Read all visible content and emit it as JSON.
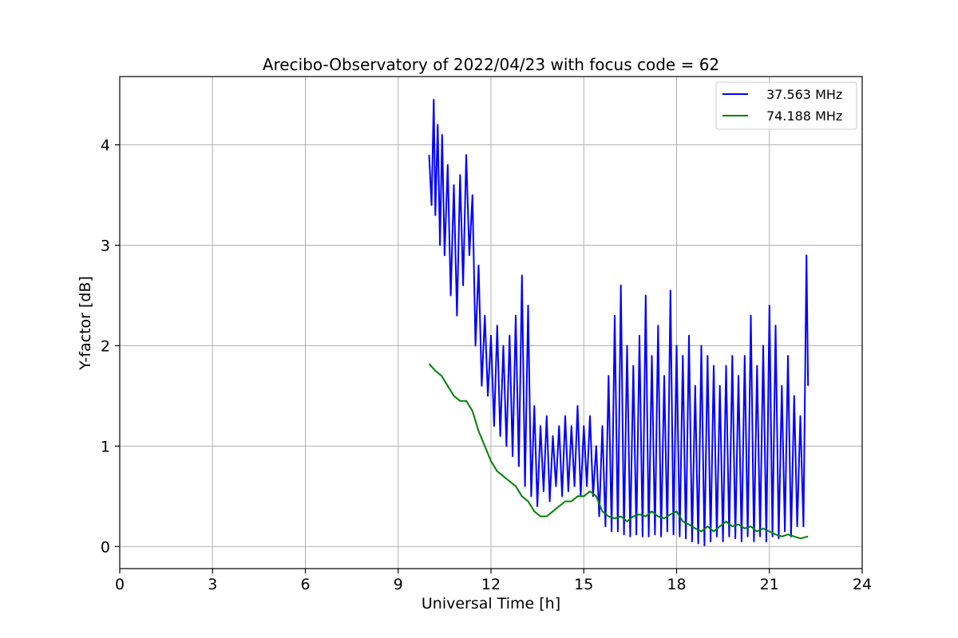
{
  "chart_data": {
    "type": "line",
    "title": "Arecibo-Observatory of 2022/04/23 with focus code = 62",
    "xlabel": "Universal Time [h]",
    "ylabel": "Y-factor [dB]",
    "xlim": [
      0,
      24
    ],
    "ylim": [
      -0.22,
      4.68
    ],
    "xticks": [
      0,
      3,
      6,
      9,
      12,
      15,
      18,
      21,
      24
    ],
    "yticks": [
      0,
      1,
      2,
      3,
      4
    ],
    "grid": true,
    "legend_position": "top-right",
    "series": [
      {
        "name": "37.563 MHz",
        "color": "#0000ff",
        "x": [
          10.0,
          10.08,
          10.15,
          10.2,
          10.28,
          10.35,
          10.42,
          10.5,
          10.6,
          10.7,
          10.8,
          10.9,
          11.0,
          11.1,
          11.2,
          11.3,
          11.4,
          11.5,
          11.6,
          11.7,
          11.8,
          11.9,
          12.0,
          12.1,
          12.2,
          12.3,
          12.4,
          12.5,
          12.6,
          12.7,
          12.8,
          12.9,
          13.0,
          13.1,
          13.2,
          13.3,
          13.4,
          13.5,
          13.6,
          13.7,
          13.8,
          13.9,
          14.0,
          14.1,
          14.2,
          14.3,
          14.4,
          14.5,
          14.6,
          14.7,
          14.8,
          14.9,
          15.0,
          15.1,
          15.2,
          15.3,
          15.4,
          15.5,
          15.6,
          15.7,
          15.8,
          15.9,
          16.0,
          16.1,
          16.2,
          16.3,
          16.4,
          16.5,
          16.6,
          16.7,
          16.8,
          16.9,
          17.0,
          17.1,
          17.2,
          17.3,
          17.4,
          17.5,
          17.6,
          17.7,
          17.8,
          17.9,
          18.0,
          18.1,
          18.2,
          18.3,
          18.4,
          18.5,
          18.6,
          18.7,
          18.8,
          18.9,
          19.0,
          19.1,
          19.2,
          19.3,
          19.4,
          19.5,
          19.6,
          19.7,
          19.8,
          19.9,
          20.0,
          20.1,
          20.2,
          20.3,
          20.4,
          20.5,
          20.6,
          20.7,
          20.8,
          20.9,
          21.0,
          21.1,
          21.2,
          21.3,
          21.4,
          21.5,
          21.6,
          21.7,
          21.8,
          21.9,
          22.0,
          22.1,
          22.2,
          22.25
        ],
        "y": [
          3.9,
          3.4,
          4.45,
          3.3,
          4.2,
          3.0,
          4.1,
          2.9,
          3.8,
          2.5,
          3.6,
          2.3,
          3.7,
          2.6,
          3.9,
          2.9,
          3.5,
          2.0,
          2.8,
          1.6,
          2.3,
          1.5,
          2.1,
          1.2,
          2.2,
          1.1,
          2.0,
          1.0,
          2.1,
          0.9,
          2.3,
          0.8,
          2.7,
          0.6,
          2.4,
          0.5,
          1.4,
          0.4,
          1.2,
          0.55,
          1.3,
          0.45,
          1.1,
          0.6,
          1.2,
          0.5,
          1.3,
          0.55,
          1.2,
          0.6,
          1.4,
          0.5,
          1.2,
          0.6,
          1.3,
          0.5,
          1.0,
          0.3,
          1.2,
          0.2,
          1.7,
          0.15,
          2.3,
          0.15,
          2.6,
          0.12,
          2.0,
          0.1,
          1.8,
          0.12,
          2.1,
          0.1,
          2.5,
          0.1,
          1.9,
          0.12,
          2.2,
          0.1,
          1.7,
          0.15,
          2.55,
          0.12,
          2.0,
          0.1,
          1.9,
          0.08,
          2.1,
          0.05,
          1.6,
          0.03,
          2.0,
          0.01,
          1.9,
          0.05,
          1.8,
          0.1,
          1.6,
          0.05,
          1.8,
          0.1,
          1.9,
          0.08,
          1.7,
          0.05,
          1.9,
          0.1,
          2.3,
          0.05,
          1.8,
          0.1,
          2.0,
          0.05,
          2.4,
          0.1,
          2.2,
          0.08,
          1.6,
          0.15,
          1.9,
          0.1,
          1.5,
          0.2,
          1.3,
          0.2,
          2.9,
          1.6
        ]
      },
      {
        "name": "74.188 MHz",
        "color": "#008000",
        "x": [
          10.0,
          10.2,
          10.4,
          10.6,
          10.8,
          11.0,
          11.2,
          11.4,
          11.6,
          11.8,
          12.0,
          12.2,
          12.4,
          12.6,
          12.8,
          13.0,
          13.2,
          13.4,
          13.6,
          13.8,
          14.0,
          14.2,
          14.4,
          14.6,
          14.8,
          15.0,
          15.2,
          15.4,
          15.6,
          15.8,
          16.0,
          16.2,
          16.4,
          16.6,
          16.8,
          17.0,
          17.2,
          17.4,
          17.6,
          17.8,
          18.0,
          18.2,
          18.4,
          18.6,
          18.8,
          19.0,
          19.2,
          19.4,
          19.6,
          19.8,
          20.0,
          20.2,
          20.4,
          20.6,
          20.8,
          21.0,
          21.2,
          21.4,
          21.6,
          21.8,
          22.0,
          22.25
        ],
        "y": [
          1.82,
          1.75,
          1.7,
          1.6,
          1.5,
          1.45,
          1.45,
          1.35,
          1.15,
          1.0,
          0.85,
          0.75,
          0.7,
          0.65,
          0.6,
          0.5,
          0.45,
          0.35,
          0.3,
          0.3,
          0.35,
          0.4,
          0.45,
          0.45,
          0.5,
          0.5,
          0.55,
          0.5,
          0.35,
          0.3,
          0.28,
          0.3,
          0.25,
          0.3,
          0.32,
          0.3,
          0.35,
          0.3,
          0.28,
          0.32,
          0.35,
          0.25,
          0.22,
          0.18,
          0.15,
          0.2,
          0.15,
          0.2,
          0.25,
          0.2,
          0.22,
          0.18,
          0.2,
          0.15,
          0.18,
          0.15,
          0.12,
          0.1,
          0.12,
          0.1,
          0.08,
          0.1
        ]
      }
    ]
  }
}
